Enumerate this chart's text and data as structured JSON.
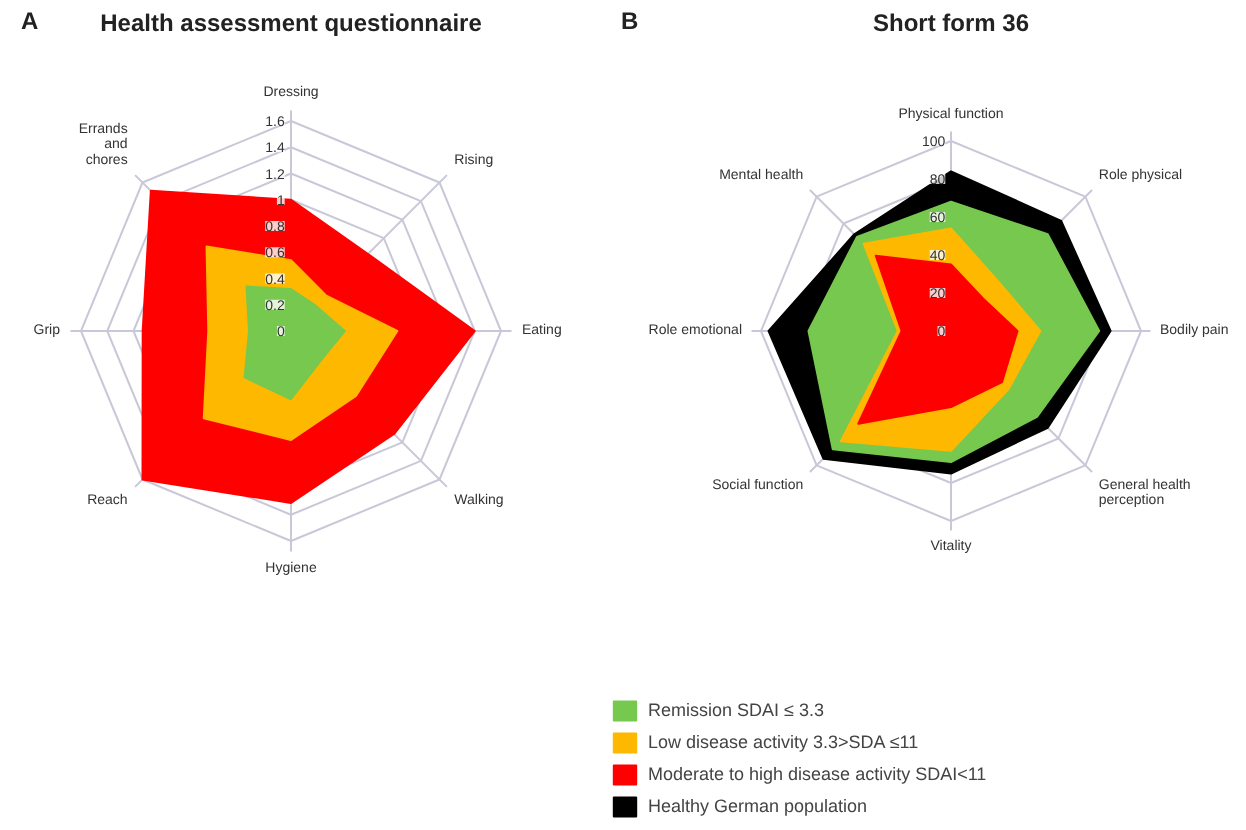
{
  "chart_data": [
    {
      "type": "radar",
      "title": "Health assessment questionnaire",
      "annotations": [
        "A"
      ],
      "categories": [
        "Dressing",
        "Rising",
        "Eating",
        "Walking",
        "Hygiene",
        "Reach",
        "Grip",
        "Errands\nand\nchores"
      ],
      "ylim": [
        0,
        1.6
      ],
      "yticks": [
        0,
        0.2,
        0.4,
        0.6,
        0.8,
        1,
        1.2,
        1.4,
        1.6
      ],
      "grid": true,
      "series": [
        {
          "color": "#77c84e",
          "values": [
            0.32,
            0.27,
            0.41,
            0.32,
            0.52,
            0.5,
            0.32,
            0.48
          ]
        },
        {
          "color": "#ffb800",
          "values": [
            0.54,
            0.38,
            0.81,
            0.7,
            0.83,
            0.94,
            0.63,
            0.91
          ]
        },
        {
          "color": "#ff0000",
          "values": [
            1.0,
            0.83,
            1.4,
            1.11,
            1.31,
            1.6,
            1.13,
            1.51
          ]
        }
      ]
    },
    {
      "type": "radar",
      "title": "Short form 36",
      "annotations": [
        "B"
      ],
      "categories": [
        "Physical function",
        "Role physical",
        "Bodily pain",
        "General health\nperception",
        "Vitality",
        "Social function",
        "Role emotional",
        "Mental health"
      ],
      "ylim": [
        0,
        100
      ],
      "yticks": [
        0,
        20,
        40,
        60,
        80,
        100
      ],
      "grid": true,
      "legend": "bottom",
      "series": [
        {
          "name": "Remission SDAI ≤ 3.3",
          "color": "#77c84e",
          "values": [
            68,
            72,
            78,
            64,
            69,
            88,
            75,
            70
          ]
        },
        {
          "name": "Low disease activity 3.3>SDA ≤11",
          "color": "#ffb800",
          "values": [
            54,
            36,
            47,
            43,
            63,
            82,
            28,
            65
          ]
        },
        {
          "name": "Moderate to high disease activity SDAI<11",
          "color": "#ff0000",
          "values": [
            35,
            24,
            35,
            38,
            40,
            69,
            26,
            56
          ]
        },
        {
          "name": "Healthy German population",
          "color": "#000000",
          "values": [
            84,
            82,
            84,
            72,
            75,
            95,
            96,
            72
          ]
        }
      ]
    }
  ]
}
